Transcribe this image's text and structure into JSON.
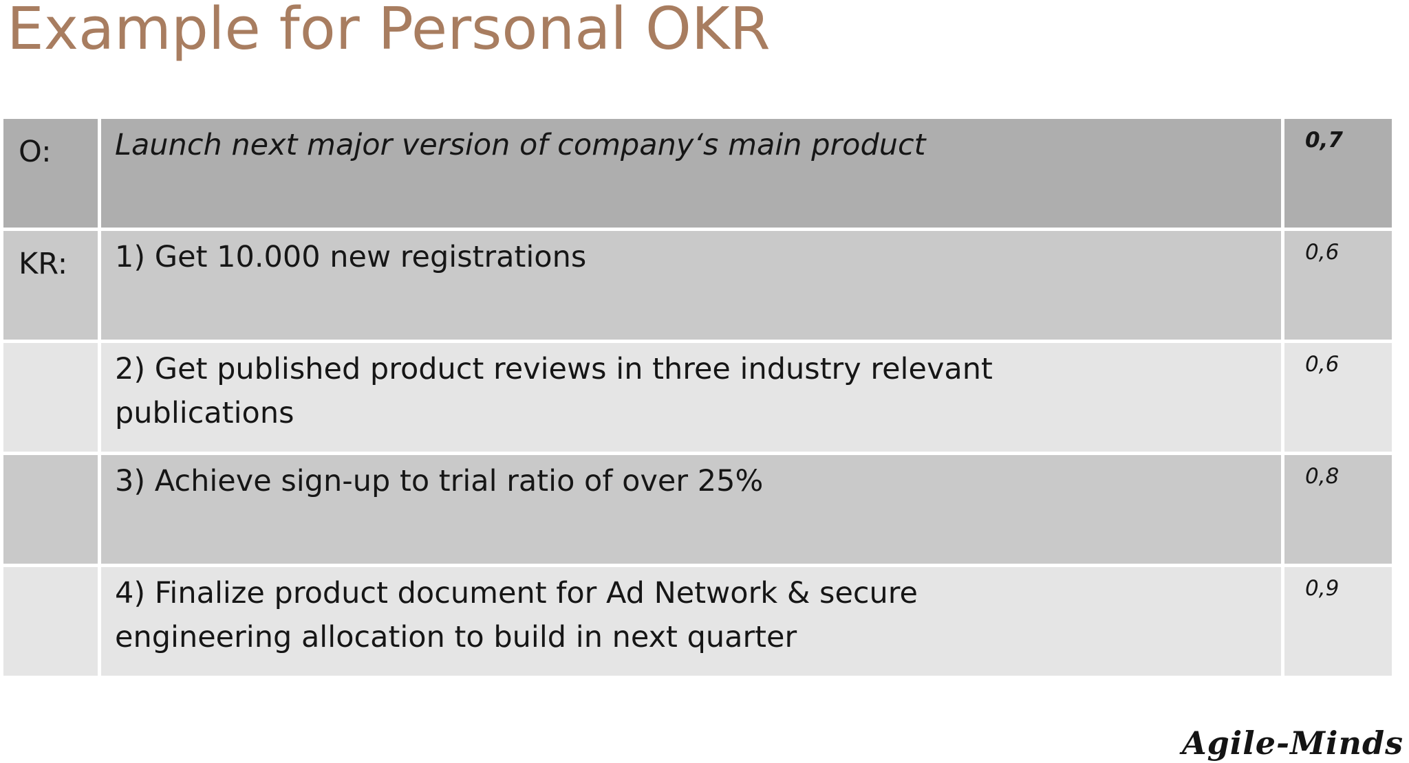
{
  "title": "Example for Personal OKR",
  "brand": "Agile-Minds",
  "colors": {
    "title_text": "#a87d60",
    "row_dark": "#aeaeae",
    "row_mid": "#c9c9c9",
    "row_light": "#e5e5e5",
    "body_text": "#161616"
  },
  "table": {
    "rows": [
      {
        "label": "O:",
        "text": "Launch next major version of company‘s main product",
        "score": "0,7"
      },
      {
        "label": "KR:",
        "text": "1) Get 10.000 new registrations",
        "score": "0,6"
      },
      {
        "label": "",
        "text": "2) Get published product reviews in three industry relevant\npublications",
        "score": "0,6"
      },
      {
        "label": "",
        "text": "3) Achieve sign-up to trial ratio of over 25%",
        "score": "0,8"
      },
      {
        "label": "",
        "text": "4) Finalize product document for Ad Network & secure\nengineering allocation to build in next quarter",
        "score": "0,9"
      }
    ]
  }
}
